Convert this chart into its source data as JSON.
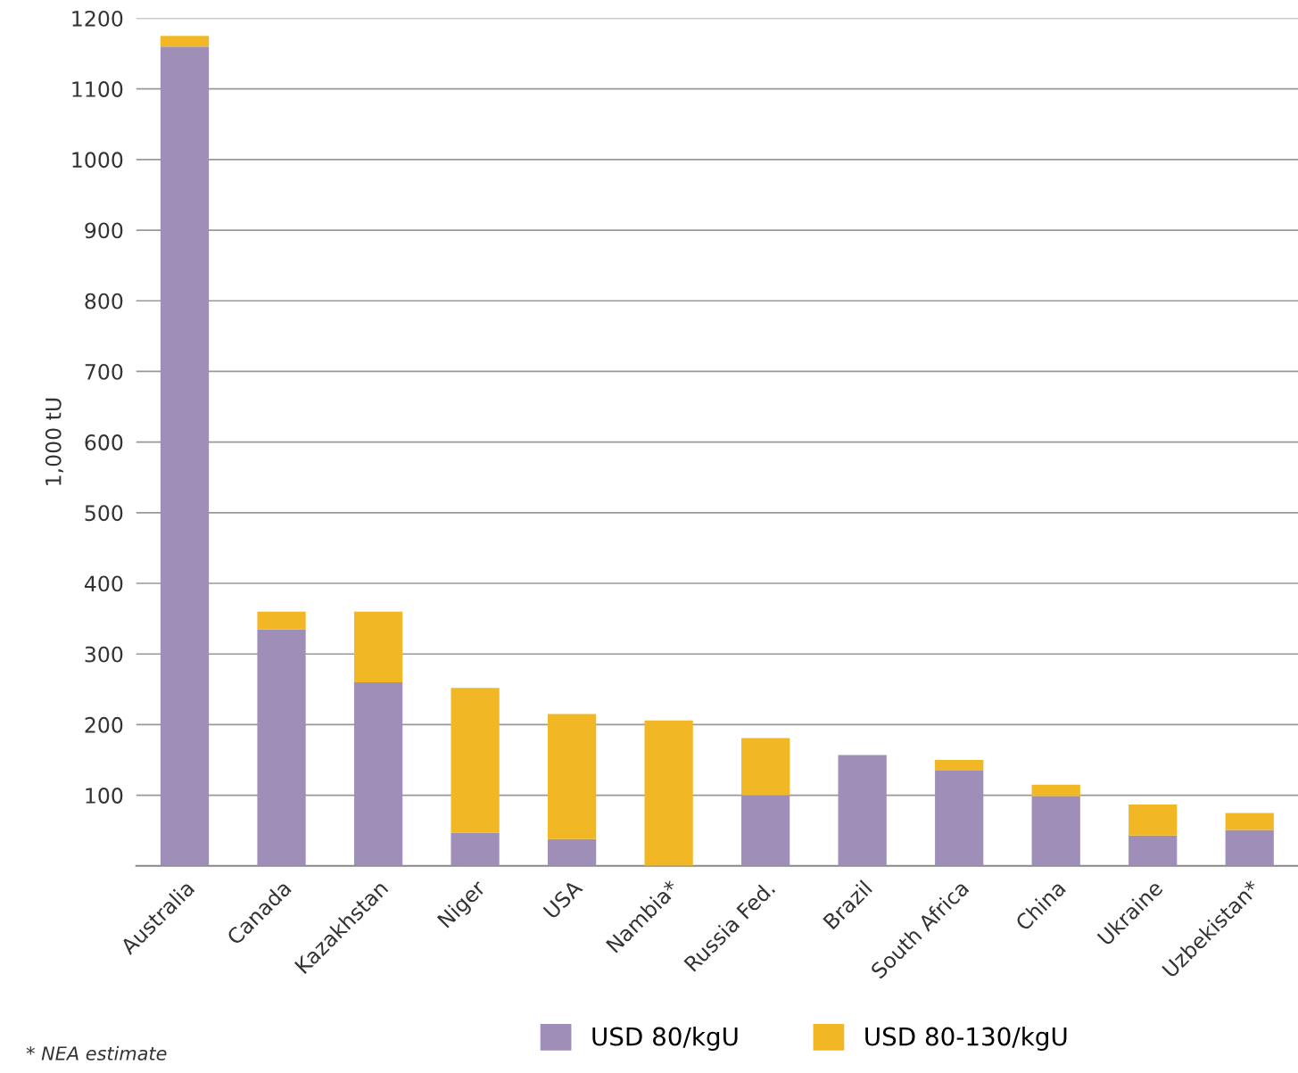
{
  "chart_data": {
    "type": "bar",
    "stacked": true,
    "ylabel": "1,000 tU",
    "categories": [
      "Australia",
      "Canada",
      "Kazakhstan",
      "Niger",
      "USA",
      "Nambia*",
      "Russia Fed.",
      "Brazil",
      "South Africa",
      "China",
      "Ukraine",
      "Uzbekistan*"
    ],
    "series": [
      {
        "name": "USD 80/kgU",
        "color": "#9f8fb8",
        "values": [
          1160,
          335,
          260,
          47,
          38,
          0,
          100,
          157,
          135,
          99,
          43,
          51
        ]
      },
      {
        "name": "USD 80-130/kgU",
        "color": "#f2b724",
        "values": [
          15,
          25,
          100,
          205,
          177,
          206,
          81,
          0,
          15,
          16,
          44,
          24
        ]
      }
    ],
    "ylim": [
      0,
      1200
    ],
    "yticks": [
      {
        "value": 0,
        "label": null
      },
      100,
      200,
      300,
      400,
      500,
      600,
      700,
      800,
      900,
      1000,
      1100,
      1200
    ],
    "grid": "y",
    "legend": "bottom",
    "annotations": [
      "* NEA estimate"
    ]
  }
}
